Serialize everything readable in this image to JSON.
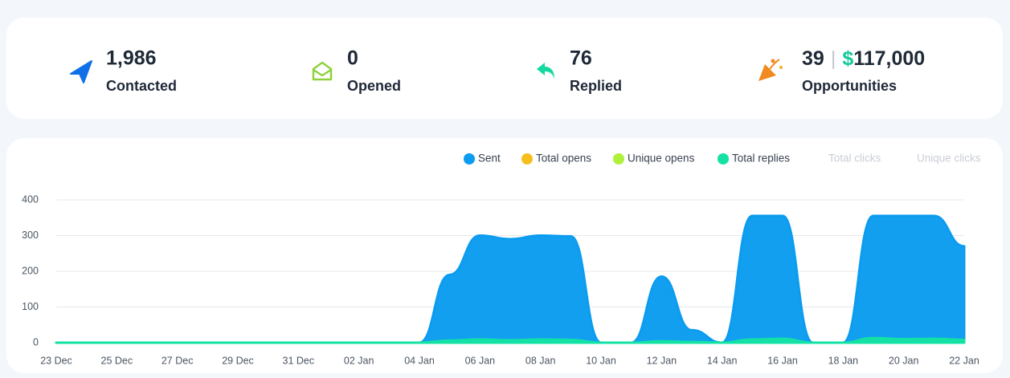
{
  "stats": [
    {
      "value": "1,986",
      "label": "Contacted"
    },
    {
      "value": "0",
      "label": "Opened"
    },
    {
      "value": "76",
      "label": "Replied"
    },
    {
      "value": "39",
      "separator": "|",
      "currency": "$",
      "amount": "117,000",
      "label": "Opportunities"
    }
  ],
  "chart_data": {
    "type": "area",
    "categories": [
      "23 Dec",
      null,
      "25 Dec",
      null,
      "27 Dec",
      null,
      "29 Dec",
      null,
      "31 Dec",
      null,
      "02 Jan",
      null,
      "04 Jan",
      null,
      "06 Jan",
      null,
      "08 Jan",
      null,
      "10 Jan",
      null,
      "12 Jan",
      null,
      "14 Jan",
      null,
      "16 Jan",
      null,
      "18 Jan",
      null,
      "20 Jan",
      null,
      "22 Jan"
    ],
    "series": [
      {
        "name": "Sent",
        "color": "#0b9cf0",
        "visible": true,
        "values": [
          0,
          0,
          0,
          0,
          0,
          0,
          0,
          0,
          0,
          0,
          0,
          0,
          0,
          190,
          300,
          290,
          300,
          298,
          0,
          0,
          185,
          35,
          0,
          355,
          355,
          0,
          0,
          355,
          355,
          355,
          270
        ]
      },
      {
        "name": "Total opens",
        "color": "#f7bf1e",
        "visible": true,
        "values": [
          0,
          0,
          0,
          0,
          0,
          0,
          0,
          0,
          0,
          0,
          0,
          0,
          0,
          0,
          0,
          0,
          0,
          0,
          0,
          0,
          0,
          0,
          0,
          0,
          0,
          0,
          0,
          0,
          0,
          0,
          0
        ]
      },
      {
        "name": "Unique opens",
        "color": "#aef03a",
        "visible": true,
        "values": [
          0,
          0,
          0,
          0,
          0,
          0,
          0,
          0,
          0,
          0,
          0,
          0,
          0,
          0,
          0,
          0,
          0,
          0,
          0,
          0,
          0,
          0,
          0,
          0,
          0,
          0,
          0,
          0,
          0,
          0,
          0
        ]
      },
      {
        "name": "Total replies",
        "color": "#14e2a4",
        "visible": true,
        "values": [
          0,
          0,
          0,
          0,
          0,
          0,
          0,
          0,
          0,
          0,
          0,
          0,
          0,
          6,
          9,
          7,
          9,
          8,
          0,
          0,
          4,
          2,
          0,
          9,
          11,
          0,
          0,
          13,
          10,
          11,
          8
        ]
      },
      {
        "name": "Total clicks",
        "color": "#eef2f6",
        "visible": false
      },
      {
        "name": "Unique clicks",
        "color": "#e8f3f8",
        "visible": false
      }
    ],
    "ylim": [
      0,
      400
    ],
    "yticks": [
      0,
      100,
      200,
      300,
      400
    ],
    "grid": true
  }
}
